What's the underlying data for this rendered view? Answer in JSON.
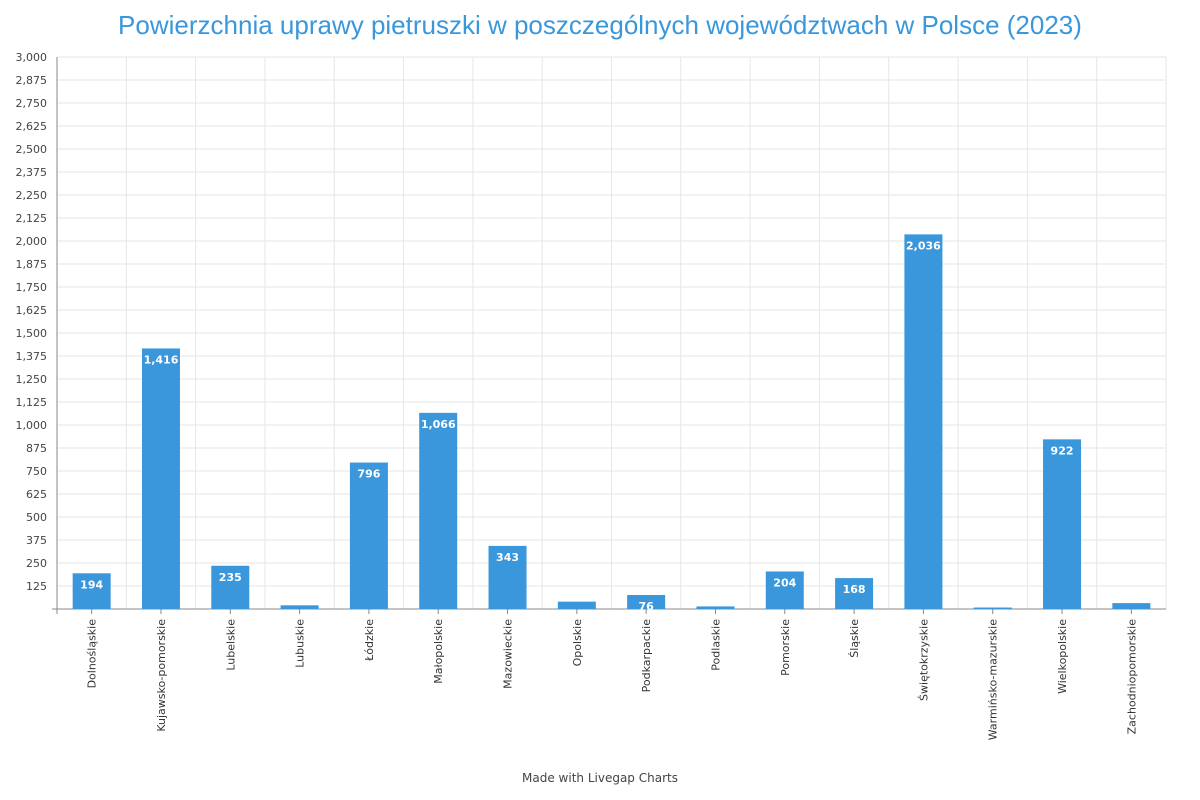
{
  "title": "Powierzchnia uprawy pietruszki w poszczególnych województwach w Polsce (2023)",
  "footer": "Made with Livegap Charts",
  "colors": {
    "bar": "#3a97dc",
    "title": "#3a97dc",
    "grid": "#e6e6e6",
    "axis": "#888888",
    "data_label": "#ffffff"
  },
  "chart_data": {
    "type": "bar",
    "title": "Powierzchnia uprawy pietruszki w poszczególnych województwach w Polsce (2023)",
    "xlabel": "",
    "ylabel": "",
    "ylim": [
      0,
      3000
    ],
    "yticks": [
      125,
      250,
      375,
      500,
      625,
      750,
      875,
      1000,
      1125,
      1250,
      1375,
      1500,
      1625,
      1750,
      1875,
      2000,
      2125,
      2250,
      2375,
      2500,
      2625,
      2750,
      2875,
      3000
    ],
    "ytick_labels": [
      "125",
      "250",
      "375",
      "500",
      "625",
      "750",
      "875",
      "1,000",
      "1,125",
      "1,250",
      "1,375",
      "1,500",
      "1,625",
      "1,750",
      "1,875",
      "2,000",
      "2,125",
      "2,250",
      "2,375",
      "2,500",
      "2,625",
      "2,750",
      "2,875",
      "3,000"
    ],
    "grid": true,
    "legend": "none",
    "categories": [
      "Dolnośląskie",
      "Kujawsko-pomorskie",
      "Lubelskie",
      "Lubuskie",
      "Łódzkie",
      "Małopolskie",
      "Mazowieckie",
      "Opolskie",
      "Podkarpackie",
      "Podlaskie",
      "Pomorskie",
      "Śląskie",
      "Świętokrzyskie",
      "Warmińsko-mazurskie",
      "Wielkopolskie",
      "Zachodniopomorskie"
    ],
    "values": [
      194,
      1416,
      235,
      20,
      796,
      1066,
      343,
      40,
      76,
      14,
      204,
      168,
      2036,
      8,
      922,
      32
    ],
    "value_labels": [
      "194",
      "1,416",
      "235",
      "",
      "796",
      "1,066",
      "343",
      "",
      "76",
      "",
      "204",
      "168",
      "2,036",
      "",
      "922",
      ""
    ]
  }
}
